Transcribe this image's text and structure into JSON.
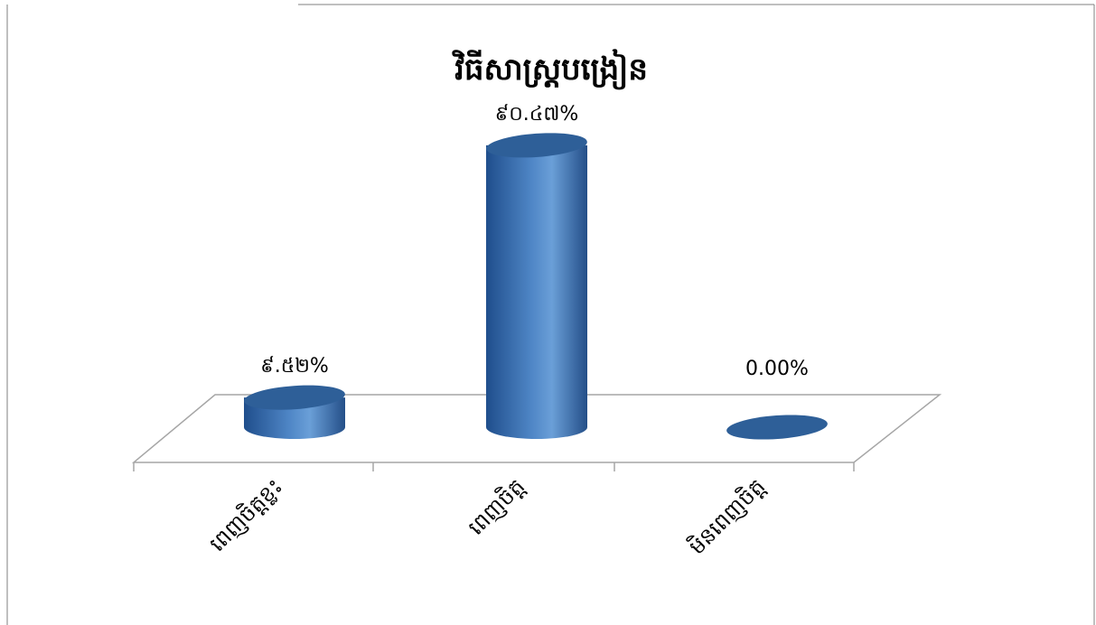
{
  "chart_data": {
    "type": "bar",
    "title": "វិធីសាស្ត្របង្រៀន",
    "categories": [
      "ពេញចិត្តខ្លះ",
      "ពេញចិត្ត",
      "មិនពេញចិត្ត"
    ],
    "values": [
      9.52,
      90.47,
      0.0
    ],
    "value_labels": [
      "៩.៥២%",
      "៩០.៤៧%",
      "0.00%"
    ],
    "ylim": [
      0,
      100
    ],
    "grid": false,
    "legend": "none",
    "style": "3d-cylinder"
  },
  "colors": {
    "bar_dark": "#1f4e8c",
    "bar_mid": "#4f86c6",
    "bar_light": "#6a9fd8",
    "bar_top": "#2e5f98",
    "floor_line": "#a6a6a6",
    "frame": "#7f7f7f"
  }
}
